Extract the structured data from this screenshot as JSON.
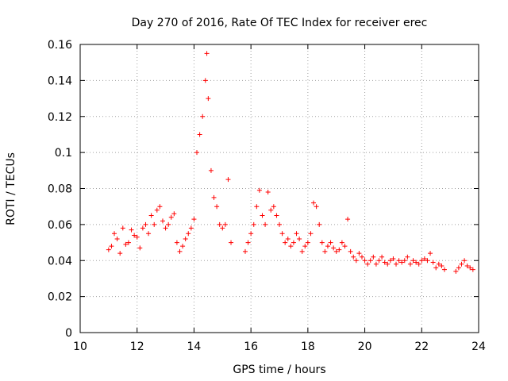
{
  "chart_data": {
    "type": "scatter",
    "title": "Day 270 of 2016, Rate Of TEC Index for receiver erec",
    "xlabel": "GPS time / hours",
    "ylabel": "ROTI / TECUs",
    "xlim": [
      10,
      24
    ],
    "ylim": [
      0,
      0.16
    ],
    "x_ticks": [
      10,
      12,
      14,
      16,
      18,
      20,
      22,
      24
    ],
    "x_tick_labels": [
      "10",
      "12",
      "14",
      "16",
      "18",
      "20",
      "22",
      "24"
    ],
    "y_ticks": [
      0,
      0.02,
      0.04,
      0.06,
      0.08,
      0.1,
      0.12,
      0.14,
      0.16
    ],
    "y_tick_labels": [
      "0",
      "0.02",
      "0.04",
      "0.06",
      "0.08",
      "0.1",
      "0.12",
      "0.14",
      "0.16"
    ],
    "grid": true,
    "marker": "+",
    "color": "#ff0000",
    "series": [
      {
        "name": "ROTI",
        "x": [
          11.0,
          11.1,
          11.2,
          11.3,
          11.4,
          11.5,
          11.6,
          11.7,
          11.8,
          11.9,
          12.0,
          12.1,
          12.2,
          12.3,
          12.4,
          12.5,
          12.6,
          12.7,
          12.8,
          12.9,
          13.0,
          13.1,
          13.2,
          13.3,
          13.4,
          13.5,
          13.6,
          13.7,
          13.8,
          13.9,
          14.0,
          14.1,
          14.2,
          14.3,
          14.4,
          14.45,
          14.5,
          14.6,
          14.7,
          14.8,
          14.9,
          15.0,
          15.1,
          15.2,
          15.3,
          15.8,
          15.9,
          16.0,
          16.1,
          16.2,
          16.3,
          16.4,
          16.5,
          16.6,
          16.7,
          16.8,
          16.9,
          17.0,
          17.1,
          17.2,
          17.3,
          17.4,
          17.5,
          17.6,
          17.7,
          17.8,
          17.9,
          18.0,
          18.1,
          18.2,
          18.3,
          18.4,
          18.5,
          18.6,
          18.7,
          18.8,
          18.9,
          19.0,
          19.1,
          19.2,
          19.3,
          19.4,
          19.5,
          19.6,
          19.7,
          19.8,
          19.9,
          20.0,
          20.1,
          20.2,
          20.3,
          20.4,
          20.5,
          20.6,
          20.7,
          20.8,
          20.9,
          21.0,
          21.1,
          21.2,
          21.3,
          21.4,
          21.5,
          21.6,
          21.7,
          21.8,
          21.9,
          22.0,
          22.1,
          22.2,
          22.3,
          22.4,
          22.5,
          22.6,
          22.7,
          22.8,
          23.2,
          23.3,
          23.4,
          23.5,
          23.6,
          23.7,
          23.8
        ],
        "y": [
          0.046,
          0.048,
          0.055,
          0.052,
          0.044,
          0.058,
          0.049,
          0.05,
          0.057,
          0.054,
          0.053,
          0.047,
          0.058,
          0.06,
          0.055,
          0.065,
          0.06,
          0.068,
          0.07,
          0.062,
          0.058,
          0.06,
          0.064,
          0.066,
          0.05,
          0.045,
          0.048,
          0.052,
          0.055,
          0.058,
          0.063,
          0.1,
          0.11,
          0.12,
          0.14,
          0.155,
          0.13,
          0.09,
          0.075,
          0.07,
          0.06,
          0.058,
          0.06,
          0.085,
          0.05,
          0.045,
          0.05,
          0.055,
          0.06,
          0.07,
          0.079,
          0.065,
          0.06,
          0.078,
          0.068,
          0.07,
          0.065,
          0.06,
          0.055,
          0.05,
          0.052,
          0.048,
          0.05,
          0.055,
          0.052,
          0.045,
          0.048,
          0.05,
          0.055,
          0.072,
          0.07,
          0.06,
          0.05,
          0.045,
          0.048,
          0.05,
          0.047,
          0.045,
          0.046,
          0.05,
          0.048,
          0.063,
          0.045,
          0.042,
          0.04,
          0.044,
          0.042,
          0.04,
          0.038,
          0.04,
          0.042,
          0.038,
          0.04,
          0.042,
          0.039,
          0.038,
          0.04,
          0.041,
          0.038,
          0.04,
          0.039,
          0.04,
          0.042,
          0.038,
          0.04,
          0.039,
          0.038,
          0.04,
          0.041,
          0.04,
          0.044,
          0.039,
          0.036,
          0.038,
          0.037,
          0.035,
          0.034,
          0.036,
          0.038,
          0.04,
          0.037,
          0.036,
          0.035
        ]
      }
    ]
  }
}
